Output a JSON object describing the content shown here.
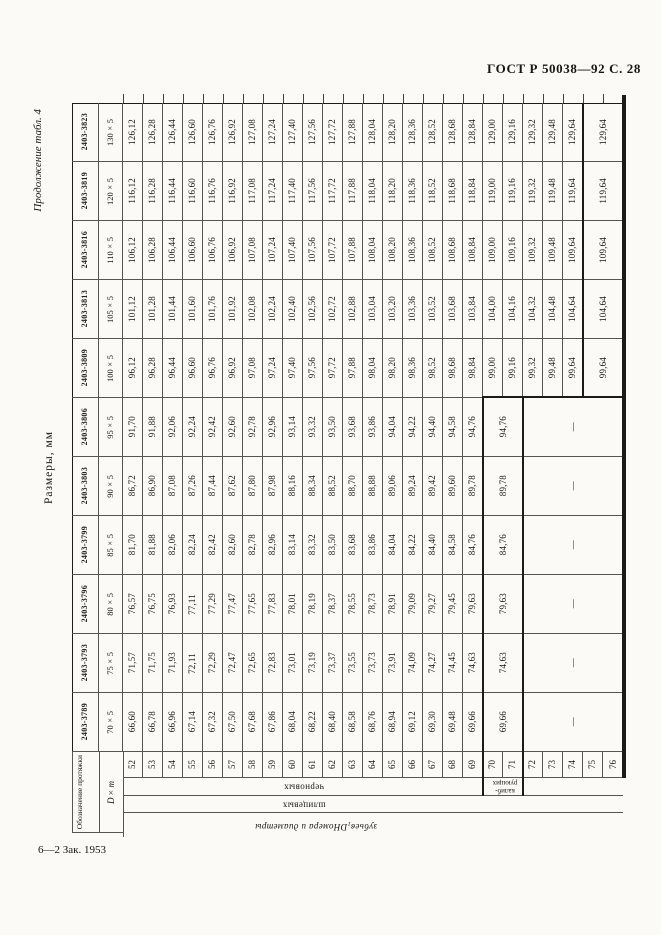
{
  "page": {
    "running_header": "ГОСТ Р 50038—92 С. 28",
    "continuation_note": "Продолжение табл. 4",
    "table_title": "Размеры, мм",
    "footer_note": "6—2 Зак. 1953"
  },
  "table": {
    "stub_header": "Обозначение протяжки",
    "stub_subheader": "D×m",
    "tooth_numbers": [
      "52",
      "53",
      "54",
      "55",
      "56",
      "57",
      "58",
      "59",
      "60",
      "61",
      "62",
      "63",
      "64",
      "65",
      "66",
      "67",
      "68",
      "69",
      "70",
      "71",
      "72",
      "73",
      "74",
      "75",
      "76"
    ],
    "group_labels": {
      "roughing": "черновых",
      "calibrating_lines": [
        "калиб-",
        "рующих"
      ],
      "spline": "шлицевых",
      "axis_pre": "Номера и диаметры ",
      "axis_var": "D",
      "axis_sub": "1",
      "axis_post": " зубьев"
    },
    "dash": "—",
    "rows": [
      {
        "designation": "2403-3823",
        "size": "130×5",
        "values": [
          "126,12",
          "126,28",
          "126,44",
          "126,60",
          "126,76",
          "126,92",
          "127,08",
          "127,24",
          "127,40",
          "127,56",
          "127,72",
          "127,88",
          "128,04",
          "128,20",
          "128,36",
          "128,52",
          "128,68",
          "128,84",
          "129,00",
          "129,16",
          "129,32",
          "129,48",
          "129,64"
        ],
        "calibrating": "129,64",
        "rest": ""
      },
      {
        "designation": "2403-3819",
        "size": "120×5",
        "values": [
          "116,12",
          "116,28",
          "116,44",
          "116,60",
          "116,76",
          "116,92",
          "117,08",
          "117,24",
          "117,40",
          "117,56",
          "117,72",
          "117,88",
          "118,04",
          "118,20",
          "118,36",
          "118,52",
          "118,68",
          "118,84",
          "119,00",
          "119,16",
          "119,32",
          "119,48",
          "119,64"
        ],
        "calibrating": "119,64",
        "rest": ""
      },
      {
        "designation": "2403-3816",
        "size": "110×5",
        "values": [
          "106,12",
          "106,28",
          "106,44",
          "106,60",
          "106,76",
          "106,92",
          "107,08",
          "107,24",
          "107,40",
          "107,56",
          "107,72",
          "107,88",
          "108,04",
          "108,20",
          "108,36",
          "108,52",
          "108,68",
          "108,84",
          "109,00",
          "109,16",
          "109,32",
          "109,48",
          "109,64"
        ],
        "calibrating": "109,64",
        "rest": ""
      },
      {
        "designation": "2403-3813",
        "size": "105×5",
        "values": [
          "101,12",
          "101,28",
          "101,44",
          "101,60",
          "101,76",
          "101,92",
          "102,08",
          "102,24",
          "102,40",
          "102,56",
          "102,72",
          "102,88",
          "103,04",
          "103,20",
          "103,36",
          "103,52",
          "103,68",
          "103,84",
          "104,00",
          "104,16",
          "104,32",
          "104,48",
          "104,64"
        ],
        "calibrating": "104,64",
        "rest": ""
      },
      {
        "designation": "2403-3809",
        "size": "100×5",
        "values": [
          "96,12",
          "96,28",
          "96,44",
          "96,60",
          "96,76",
          "96,92",
          "97,08",
          "97,24",
          "97,40",
          "97,56",
          "97,72",
          "97,88",
          "98,04",
          "98,20",
          "98,36",
          "98,52",
          "98,68",
          "98,84",
          "99,00",
          "99,16",
          "99,32",
          "99,48",
          "99,64"
        ],
        "calibrating": "99,64",
        "rest": ""
      },
      {
        "designation": "2403-3806",
        "size": "95×5",
        "values": [
          "91,70",
          "91,88",
          "92,06",
          "92,24",
          "92,42",
          "92,60",
          "92,78",
          "92,96",
          "93,14",
          "93,32",
          "93,50",
          "93,68",
          "93,86",
          "94,04",
          "94,22",
          "94,40",
          "94,58",
          "94,76"
        ],
        "calibrating": "94,76",
        "rest": "—"
      },
      {
        "designation": "2403-3803",
        "size": "90×5",
        "values": [
          "86,72",
          "86,90",
          "87,08",
          "87,26",
          "87,44",
          "87,62",
          "87,80",
          "87,98",
          "88,16",
          "88,34",
          "88,52",
          "88,70",
          "88,88",
          "89,06",
          "89,24",
          "89,42",
          "89,60",
          "89,78"
        ],
        "calibrating": "89,78",
        "rest": "—"
      },
      {
        "designation": "2403-3799",
        "size": "85×5",
        "values": [
          "81,70",
          "81,88",
          "82,06",
          "82,24",
          "82,42",
          "82,60",
          "82,78",
          "82,96",
          "83,14",
          "83,32",
          "83,50",
          "83,68",
          "83,86",
          "84,04",
          "84,22",
          "84,40",
          "84,58",
          "84,76"
        ],
        "calibrating": "84,76",
        "rest": "—"
      },
      {
        "designation": "2403-3796",
        "size": "80×5",
        "values": [
          "76,57",
          "76,75",
          "76,93",
          "77,11",
          "77,29",
          "77,47",
          "77,65",
          "77,83",
          "78,01",
          "78,19",
          "78,37",
          "78,55",
          "78,73",
          "78,91",
          "79,09",
          "79,27",
          "79,45",
          "79,63"
        ],
        "calibrating": "79,63",
        "rest": "—"
      },
      {
        "designation": "2403-3793",
        "size": "75×5",
        "values": [
          "71,57",
          "71,75",
          "71,93",
          "72,11",
          "72,29",
          "72,47",
          "72,65",
          "72,83",
          "73,01",
          "73,19",
          "73,37",
          "73,55",
          "73,73",
          "73,91",
          "74,09",
          "74,27",
          "74,45",
          "74,63"
        ],
        "calibrating": "74,63",
        "rest": "—"
      },
      {
        "designation": "2403-3789",
        "size": "70×5",
        "values": [
          "66,60",
          "66,78",
          "66,96",
          "67,14",
          "67,32",
          "67,50",
          "67,68",
          "67,86",
          "68,04",
          "68,22",
          "68,40",
          "68,58",
          "68,76",
          "68,94",
          "69,12",
          "69,30",
          "69,48",
          "69,66"
        ],
        "calibrating": "69,66",
        "rest": "—"
      }
    ]
  }
}
